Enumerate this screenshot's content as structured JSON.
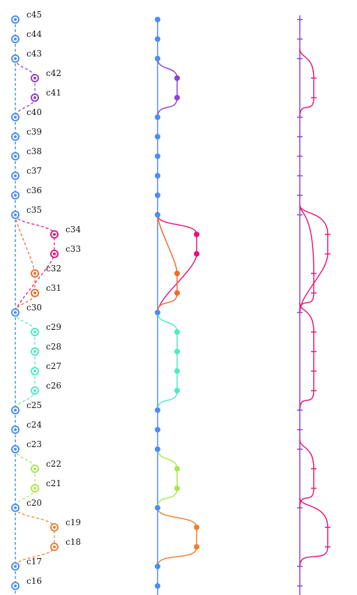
{
  "commits": [
    {
      "label": "c45",
      "lane": 0,
      "color": "#4a8ef0"
    },
    {
      "label": "c44",
      "lane": 0,
      "color": "#4a8ef0"
    },
    {
      "label": "c43",
      "lane": 0,
      "color": "#4a8ef0"
    },
    {
      "label": "c42",
      "lane": 1,
      "color": "#8e3fd6"
    },
    {
      "label": "c41",
      "lane": 1,
      "color": "#8e3fd6"
    },
    {
      "label": "c40",
      "lane": 0,
      "color": "#4a8ef0"
    },
    {
      "label": "c39",
      "lane": 0,
      "color": "#4a8ef0"
    },
    {
      "label": "c38",
      "lane": 0,
      "color": "#4a8ef0"
    },
    {
      "label": "c37",
      "lane": 0,
      "color": "#4a8ef0"
    },
    {
      "label": "c36",
      "lane": 0,
      "color": "#4a8ef0"
    },
    {
      "label": "c35",
      "lane": 0,
      "color": "#4a8ef0"
    },
    {
      "label": "c34",
      "lane": 2,
      "color": "#e8147a"
    },
    {
      "label": "c33",
      "lane": 2,
      "color": "#e8147a"
    },
    {
      "label": "c32",
      "lane": 1,
      "color": "#f06a2a"
    },
    {
      "label": "c31",
      "lane": 1,
      "color": "#f06a2a"
    },
    {
      "label": "c30",
      "lane": 0,
      "color": "#4a8ef0"
    },
    {
      "label": "c29",
      "lane": 1,
      "color": "#4eeac6"
    },
    {
      "label": "c28",
      "lane": 1,
      "color": "#4eeac6"
    },
    {
      "label": "c27",
      "lane": 1,
      "color": "#4eeac6"
    },
    {
      "label": "c26",
      "lane": 1,
      "color": "#4eeac6"
    },
    {
      "label": "c25",
      "lane": 0,
      "color": "#4a8ef0"
    },
    {
      "label": "c24",
      "lane": 0,
      "color": "#4a8ef0"
    },
    {
      "label": "c23",
      "lane": 0,
      "color": "#4a8ef0"
    },
    {
      "label": "c22",
      "lane": 1,
      "color": "#a6e84a"
    },
    {
      "label": "c21",
      "lane": 1,
      "color": "#a6e84a"
    },
    {
      "label": "c20",
      "lane": 0,
      "color": "#4a8ef0"
    },
    {
      "label": "c19",
      "lane": 2,
      "color": "#f07f2f"
    },
    {
      "label": "c18",
      "lane": 2,
      "color": "#f07f2f"
    },
    {
      "label": "c17",
      "lane": 0,
      "color": "#4a8ef0"
    },
    {
      "label": "c16",
      "lane": 0,
      "color": "#4a8ef0"
    }
  ]
}
